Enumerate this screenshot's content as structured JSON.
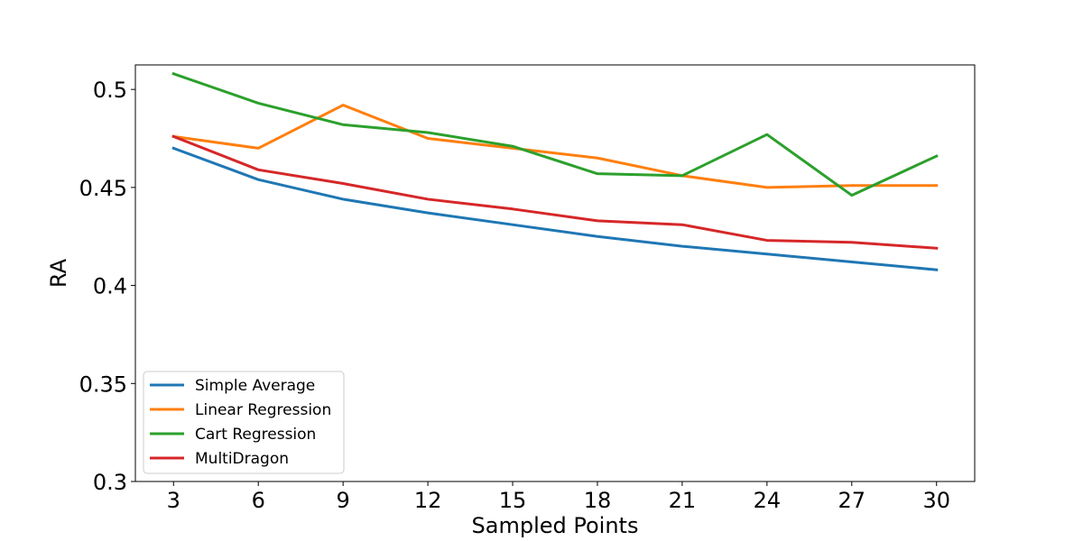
{
  "chart_data": {
    "type": "line",
    "title": "",
    "xlabel": "Sampled Points",
    "ylabel": "RA",
    "x": [
      3,
      6,
      9,
      12,
      15,
      18,
      21,
      24,
      27,
      30
    ],
    "xlim": [
      1.65,
      31.35
    ],
    "ylim": [
      0.3,
      0.5125
    ],
    "yticks": [
      0.3,
      0.35,
      0.4,
      0.45,
      0.5
    ],
    "ytick_labels": [
      "0.3",
      "0.35",
      "0.4",
      "0.45",
      "0.5"
    ],
    "xtick_labels": [
      "3",
      "6",
      "9",
      "12",
      "15",
      "18",
      "21",
      "24",
      "27",
      "30"
    ],
    "grid": false,
    "legend_position": "lower-left",
    "series": [
      {
        "name": "Simple Average",
        "color": "#1f77b4",
        "values": [
          0.47,
          0.454,
          0.444,
          0.437,
          0.431,
          0.425,
          0.42,
          0.416,
          0.412,
          0.408
        ]
      },
      {
        "name": "Linear Regression",
        "color": "#ff7f0e",
        "values": [
          0.476,
          0.47,
          0.492,
          0.475,
          0.47,
          0.465,
          0.456,
          0.45,
          0.451,
          0.451
        ]
      },
      {
        "name": "Cart Regression",
        "color": "#2ca02c",
        "values": [
          0.508,
          0.493,
          0.482,
          0.478,
          0.471,
          0.457,
          0.456,
          0.477,
          0.446,
          0.466
        ]
      },
      {
        "name": "MultiDragon",
        "color": "#d62728",
        "values": [
          0.476,
          0.459,
          0.452,
          0.444,
          0.439,
          0.433,
          0.431,
          0.423,
          0.422,
          0.419
        ]
      }
    ]
  }
}
